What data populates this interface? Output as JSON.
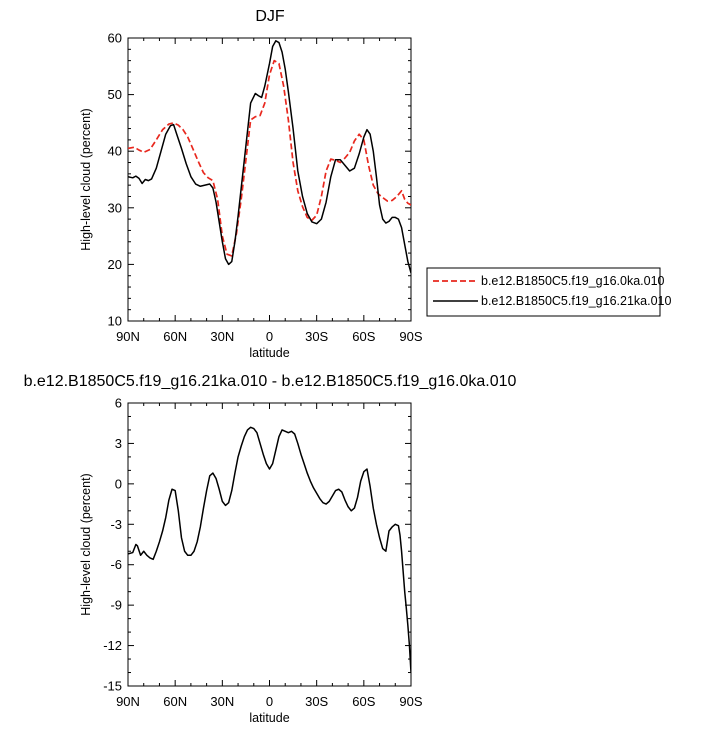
{
  "figure": {
    "top_title": "DJF",
    "bottom_title": "b.e12.B1850C5.f19_g16.21ka.010 - b.e12.B1850C5.f19_g16.0ka.010"
  },
  "legend": {
    "entries": [
      {
        "label": "b.e12.B1850C5.f19_g16.0ka.010",
        "color": "#e8281e",
        "dash": "dashed"
      },
      {
        "label": "b.e12.B1850C5.f19_g16.21ka.010",
        "color": "#000000",
        "dash": "solid"
      }
    ]
  },
  "chart_data": [
    {
      "type": "line",
      "title": "DJF",
      "xlabel": "latitude",
      "ylabel": "High-level cloud (percent)",
      "xlim": [
        90,
        -90
      ],
      "ylim": [
        10,
        60
      ],
      "xticks": [
        90,
        60,
        30,
        0,
        -30,
        -60,
        -90
      ],
      "xtick_labels": [
        "90N",
        "60N",
        "30N",
        "0",
        "30S",
        "60S",
        "90S"
      ],
      "yticks": [
        10,
        20,
        30,
        40,
        50,
        60
      ],
      "ytick_labels": [
        "10",
        "20",
        "30",
        "40",
        "50",
        "60"
      ],
      "legend_position": "right",
      "series": [
        {
          "name": "b.e12.B1850C5.f19_g16.0ka.010",
          "color": "#e8281e",
          "dash": "dashed",
          "x": [
            90,
            86,
            83,
            80,
            76,
            72,
            68,
            64,
            61,
            58,
            55,
            52,
            49,
            45,
            42,
            39,
            36,
            33,
            30,
            27,
            24,
            21,
            18,
            15,
            12,
            9,
            6,
            3,
            0,
            -3,
            -6,
            -9,
            -12,
            -15,
            -18,
            -21,
            -24,
            -27,
            -30,
            -33,
            -36,
            -39,
            -42,
            -45,
            -48,
            -51,
            -54,
            -57,
            -60,
            -63,
            -66,
            -69,
            -72,
            -75,
            -78,
            -81,
            -84,
            -86,
            -88,
            -90
          ],
          "values": [
            40.5,
            40.7,
            40.2,
            39.8,
            40.3,
            42.0,
            43.8,
            44.8,
            45.0,
            44.6,
            43.8,
            42.5,
            40.6,
            38.0,
            36.2,
            35.3,
            34.8,
            31.5,
            25.0,
            21.8,
            21.5,
            25.5,
            31.5,
            38.5,
            45.5,
            46.1,
            46.3,
            48.5,
            53.5,
            56.0,
            55.5,
            51.5,
            45.5,
            38.0,
            33.0,
            30.2,
            28.3,
            27.8,
            28.7,
            32.0,
            36.5,
            38.6,
            38.4,
            38.0,
            38.8,
            39.8,
            41.8,
            43.0,
            42.0,
            37.5,
            34.0,
            32.5,
            31.8,
            31.2,
            31.3,
            32.0,
            33.0,
            31.5,
            30.8,
            30.5
          ]
        },
        {
          "name": "b.e12.B1850C5.f19_g16.21ka.010",
          "color": "#000000",
          "dash": "solid",
          "x": [
            90,
            87,
            85,
            83,
            81,
            79,
            77,
            75,
            72,
            69,
            66,
            63,
            61,
            59,
            56,
            53,
            50,
            47,
            44,
            41,
            38,
            36,
            34,
            32,
            30,
            28,
            26,
            24,
            22,
            20,
            18,
            15,
            12,
            9,
            7,
            5,
            3,
            0,
            -2,
            -4,
            -6,
            -8,
            -10,
            -12,
            -15,
            -18,
            -21,
            -24,
            -27,
            -30,
            -33,
            -36,
            -39,
            -42,
            -45,
            -48,
            -51,
            -54,
            -57,
            -60,
            -62,
            -64,
            -66,
            -68,
            -70,
            -72,
            -74,
            -76,
            -78,
            -80,
            -82,
            -84,
            -86,
            -88,
            -90
          ],
          "values": [
            35.5,
            35.3,
            35.6,
            35.2,
            34.3,
            35.0,
            34.8,
            35.1,
            37.0,
            40.0,
            43.0,
            44.5,
            44.7,
            43.0,
            40.5,
            37.8,
            35.5,
            34.2,
            33.8,
            34.0,
            34.2,
            33.5,
            31.0,
            27.5,
            24.0,
            21.0,
            20.0,
            20.5,
            24.0,
            28.5,
            33.5,
            41.0,
            48.5,
            50.2,
            49.8,
            49.5,
            51.5,
            55.5,
            58.5,
            59.5,
            59.2,
            57.5,
            54.5,
            50.5,
            44.0,
            36.5,
            32.0,
            29.0,
            27.5,
            27.2,
            28.0,
            31.0,
            35.5,
            38.5,
            38.5,
            37.5,
            36.5,
            37.0,
            39.5,
            42.5,
            43.8,
            43.0,
            40.0,
            35.5,
            30.5,
            28.0,
            27.3,
            27.6,
            28.3,
            28.3,
            28.0,
            26.5,
            23.5,
            20.5,
            18.5
          ]
        }
      ]
    },
    {
      "type": "line",
      "title": "b.e12.B1850C5.f19_g16.21ka.010 - b.e12.B1850C5.f19_g16.0ka.010",
      "xlabel": "latitude",
      "ylabel": "High-level cloud (percent)",
      "xlim": [
        90,
        -90
      ],
      "ylim": [
        -15,
        6
      ],
      "xticks": [
        90,
        60,
        30,
        0,
        -30,
        -60,
        -90
      ],
      "xtick_labels": [
        "90N",
        "60N",
        "30N",
        "0",
        "30S",
        "60S",
        "90S"
      ],
      "yticks": [
        -15,
        -12,
        -9,
        -6,
        -3,
        0,
        3,
        6
      ],
      "ytick_labels": [
        "-15",
        "-12",
        "-9",
        "-6",
        "-3",
        "0",
        "3",
        "6"
      ],
      "series": [
        {
          "name": "",
          "color": "#000000",
          "dash": "solid",
          "x": [
            90,
            87,
            85,
            84,
            82,
            80,
            78,
            76,
            74,
            72,
            70,
            68,
            66,
            64,
            62,
            60,
            58,
            56,
            54,
            52,
            50,
            48,
            46,
            44,
            42,
            40,
            38,
            36,
            34,
            32,
            30,
            28,
            26,
            24,
            22,
            20,
            18,
            16,
            14,
            12,
            10,
            8,
            6,
            4,
            2,
            0,
            -2,
            -4,
            -6,
            -8,
            -10,
            -12,
            -14,
            -16,
            -18,
            -20,
            -22,
            -24,
            -26,
            -28,
            -30,
            -32,
            -34,
            -36,
            -38,
            -40,
            -42,
            -44,
            -46,
            -48,
            -50,
            -52,
            -54,
            -56,
            -58,
            -60,
            -62,
            -64,
            -66,
            -68,
            -70,
            -72,
            -74,
            -76,
            -78,
            -80,
            -82,
            -83,
            -84,
            -85,
            -86,
            -87,
            -88,
            -89,
            -90
          ],
          "values": [
            -5.2,
            -5.1,
            -4.5,
            -4.6,
            -5.3,
            -5.0,
            -5.3,
            -5.5,
            -5.6,
            -5.0,
            -4.3,
            -3.5,
            -2.5,
            -1.2,
            -0.4,
            -0.5,
            -2.0,
            -4.0,
            -5.0,
            -5.3,
            -5.3,
            -5.0,
            -4.3,
            -3.2,
            -1.8,
            -0.5,
            0.6,
            0.8,
            0.4,
            -0.4,
            -1.3,
            -1.6,
            -1.4,
            -0.5,
            0.8,
            2.0,
            2.8,
            3.5,
            4.0,
            4.2,
            4.1,
            3.8,
            3.0,
            2.2,
            1.5,
            1.1,
            1.5,
            2.5,
            3.5,
            4.0,
            3.9,
            3.8,
            3.9,
            3.7,
            3.0,
            2.2,
            1.5,
            0.8,
            0.2,
            -0.3,
            -0.7,
            -1.1,
            -1.4,
            -1.5,
            -1.3,
            -0.9,
            -0.5,
            -0.4,
            -0.6,
            -1.2,
            -1.7,
            -2.0,
            -1.8,
            -1.0,
            0.2,
            0.9,
            1.1,
            -0.2,
            -1.8,
            -3.0,
            -4.0,
            -4.8,
            -5.0,
            -3.5,
            -3.2,
            -3.0,
            -3.1,
            -3.8,
            -5.0,
            -6.5,
            -8.0,
            -9.2,
            -10.5,
            -12.0,
            -14.0
          ]
        }
      ]
    }
  ]
}
